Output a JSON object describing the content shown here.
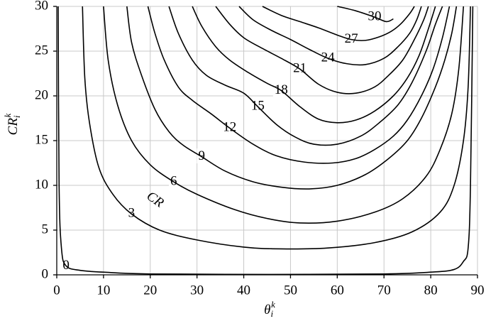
{
  "chart_data": {
    "type": "contour",
    "xlabel": {
      "text": "θ",
      "sub": "i",
      "sup": "k"
    },
    "ylabel": {
      "text": "CR",
      "sub": "i",
      "sup": "k"
    },
    "annotation": "CR",
    "xlim": [
      0,
      90
    ],
    "ylim": [
      0,
      30
    ],
    "xticks": [
      0,
      10,
      20,
      30,
      40,
      50,
      60,
      70,
      80,
      90
    ],
    "yticks": [
      0,
      5,
      10,
      15,
      20,
      25,
      30
    ],
    "grid": true,
    "series": [
      {
        "name": "0",
        "color": "#000000",
        "x": [
          0.3,
          0.5,
          1,
          2,
          5,
          10,
          20,
          45,
          70,
          80,
          85,
          87,
          88,
          88.5,
          89
        ],
        "y": [
          30,
          10,
          3,
          1,
          0.5,
          0.3,
          0.1,
          0.05,
          0.1,
          0.3,
          0.6,
          1.5,
          3,
          10,
          30
        ]
      },
      {
        "name": "3",
        "color": "#000000",
        "x": [
          5.5,
          6,
          7,
          9,
          12,
          16,
          22,
          30,
          40,
          48,
          58,
          68,
          76,
          82,
          85,
          87,
          88,
          88.5
        ],
        "y": [
          30,
          22,
          17,
          12,
          9,
          6.8,
          5,
          3.9,
          3.1,
          2.9,
          3.0,
          3.6,
          4.8,
          7,
          10,
          15,
          21,
          30
        ]
      },
      {
        "name": "6",
        "color": "#000000",
        "x": [
          10,
          11,
          13,
          16,
          20,
          25,
          30,
          38,
          45,
          52,
          60,
          68,
          74,
          79,
          82,
          84.5,
          86,
          87
        ],
        "y": [
          30,
          24,
          19,
          15,
          12.3,
          10.4,
          9,
          7.3,
          6.3,
          5.8,
          6.0,
          7.0,
          8.5,
          11,
          14,
          18,
          23,
          30
        ]
      },
      {
        "name": "9",
        "color": "#000000",
        "x": [
          15,
          16,
          18,
          21,
          24,
          27,
          31,
          36,
          42,
          48,
          54,
          60,
          66,
          71,
          75,
          78,
          81,
          83,
          84.5,
          85.5
        ],
        "y": [
          30,
          26,
          22.5,
          18.5,
          16,
          14.5,
          13.2,
          11.6,
          10.4,
          9.8,
          9.6,
          10,
          11.2,
          13,
          15,
          17.5,
          21,
          24,
          27,
          30
        ]
      },
      {
        "name": "12",
        "color": "#000000",
        "x": [
          19.5,
          21,
          23,
          26,
          29,
          33,
          37,
          42,
          47,
          53,
          59,
          64,
          68,
          72,
          75,
          78,
          80.5,
          82.5,
          84
        ],
        "y": [
          30,
          27,
          24,
          21,
          19.5,
          18,
          16.4,
          14.6,
          13.3,
          12.6,
          12.5,
          13,
          14,
          15.5,
          17.3,
          20,
          23,
          26.5,
          30
        ]
      },
      {
        "name": "15",
        "color": "#000000",
        "x": [
          24,
          26,
          29,
          32,
          36,
          40,
          43,
          47,
          51,
          55,
          60,
          65,
          69,
          73,
          76,
          79,
          81,
          82.5
        ],
        "y": [
          30,
          27,
          24,
          22.3,
          21.2,
          20.3,
          18.8,
          16.8,
          15.4,
          14.6,
          14.6,
          15.5,
          17,
          19,
          21.5,
          25,
          28,
          30
        ]
      },
      {
        "name": "18",
        "color": "#000000",
        "x": [
          29,
          31,
          34,
          37,
          41,
          45,
          48,
          52,
          56,
          60,
          64,
          68,
          72,
          75,
          77.5,
          79.5,
          81
        ],
        "y": [
          30,
          27.8,
          25.5,
          24,
          22.6,
          21.4,
          20.6,
          18.8,
          17.4,
          17,
          17.3,
          18.3,
          20,
          22,
          24.5,
          27.5,
          30
        ]
      },
      {
        "name": "21",
        "color": "#000000",
        "x": [
          34,
          37,
          40,
          44,
          48,
          52,
          56,
          60,
          64,
          68,
          71,
          74,
          76.5,
          78.5,
          79.5
        ],
        "y": [
          30,
          28,
          26.5,
          25.3,
          24.2,
          23,
          21.3,
          20.4,
          20.3,
          21,
          22.3,
          24,
          26.3,
          28.5,
          30
        ]
      },
      {
        "name": "24",
        "color": "#000000",
        "x": [
          39,
          42,
          46,
          50,
          54,
          58,
          62,
          66,
          70,
          73,
          75.5,
          77,
          78
        ],
        "y": [
          30,
          28.5,
          27.3,
          26.3,
          25.2,
          24.2,
          23.6,
          23.5,
          24.2,
          25.5,
          27,
          28.5,
          30
        ]
      },
      {
        "name": "27",
        "color": "#000000",
        "x": [
          44,
          48,
          52,
          56,
          60,
          63,
          66,
          69,
          71.5,
          73.5,
          75.5,
          76.5
        ],
        "y": [
          30,
          29,
          28.3,
          27.6,
          26.8,
          26.3,
          26.2,
          26.6,
          27.2,
          28,
          29.2,
          30
        ]
      },
      {
        "name": "30",
        "color": "#000000",
        "x": [
          60,
          64,
          68,
          70.5,
          72
        ],
        "y": [
          30,
          29.5,
          28.8,
          28.3,
          28.6
        ]
      }
    ]
  }
}
